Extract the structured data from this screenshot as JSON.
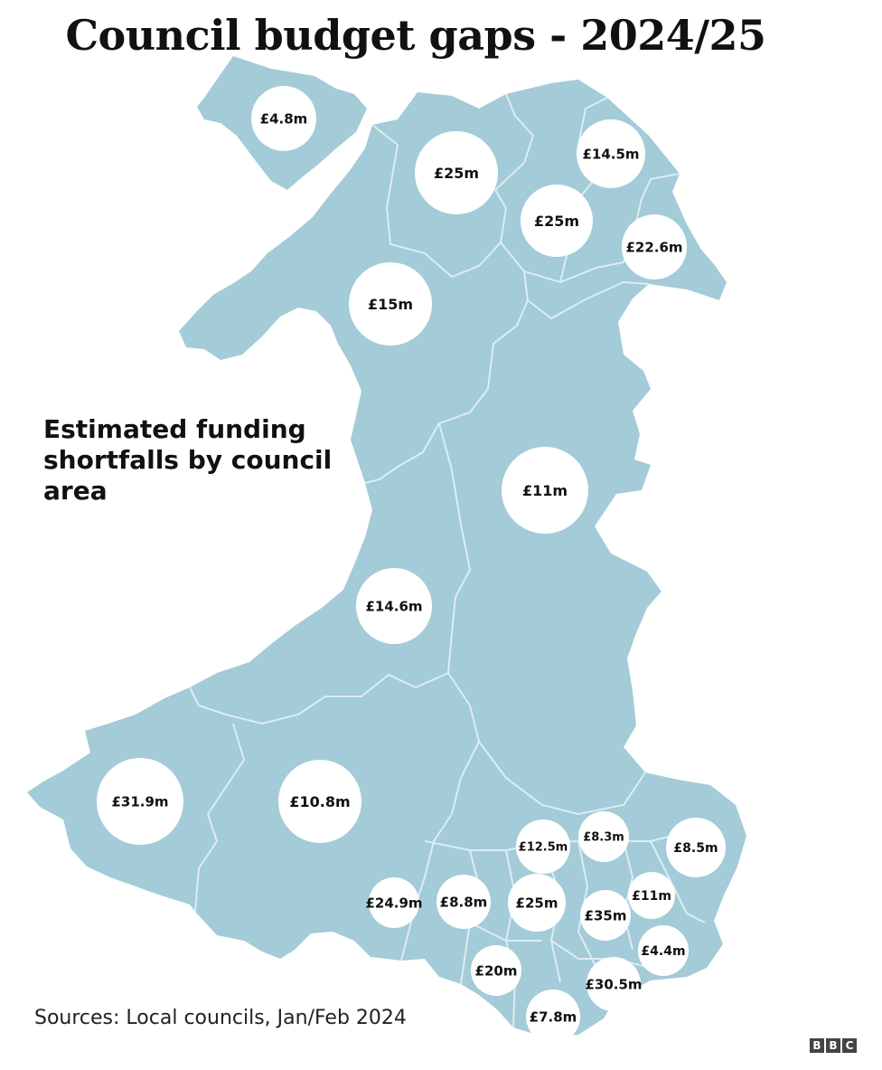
{
  "title": "Council budget gaps - 2024/25",
  "subtitle": "Estimated funding shortfalls by council area",
  "source": "Sources: Local councils, Jan/Feb 2024",
  "logo": [
    "B",
    "B",
    "C"
  ],
  "colors": {
    "land": "#a3cbd8",
    "border": "#dcedf2",
    "bubble": "#ffffff"
  },
  "chart_data": {
    "type": "map",
    "values": [
      {
        "label": "£4.8m",
        "value": 4.8
      },
      {
        "label": "£25m",
        "value": 25
      },
      {
        "label": "£14.5m",
        "value": 14.5
      },
      {
        "label": "£25m",
        "value": 25
      },
      {
        "label": "£22.6m",
        "value": 22.6
      },
      {
        "label": "£15m",
        "value": 15
      },
      {
        "label": "£11m",
        "value": 11
      },
      {
        "label": "£14.6m",
        "value": 14.6
      },
      {
        "label": "£31.9m",
        "value": 31.9
      },
      {
        "label": "£10.8m",
        "value": 10.8
      },
      {
        "label": "£12.5m",
        "value": 12.5
      },
      {
        "label": "£8.3m",
        "value": 8.3
      },
      {
        "label": "£8.5m",
        "value": 8.5
      },
      {
        "label": "£24.9m",
        "value": 24.9
      },
      {
        "label": "£8.8m",
        "value": 8.8
      },
      {
        "label": "£25m",
        "value": 25
      },
      {
        "label": "£35m",
        "value": 35
      },
      {
        "label": "£11m",
        "value": 11
      },
      {
        "label": "£4.4m",
        "value": 4.4
      },
      {
        "label": "£20m",
        "value": 20
      },
      {
        "label": "£30.5m",
        "value": 30.5
      },
      {
        "label": "£7.8m",
        "value": 7.8
      }
    ]
  }
}
